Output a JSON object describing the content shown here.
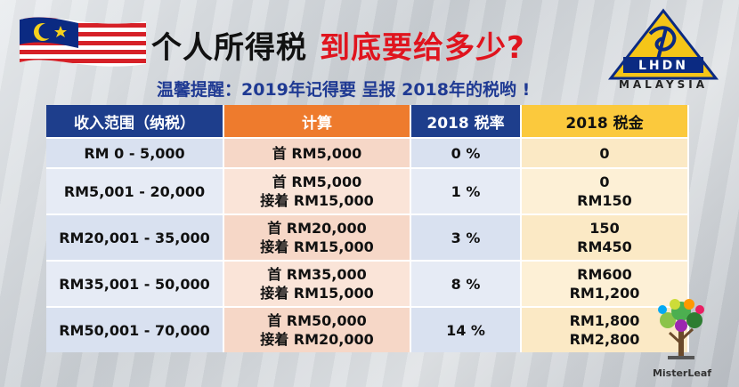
{
  "title": {
    "part1": "个人所得税",
    "part2": "到底要给多少?"
  },
  "subtitle": "温馨提醒：2019年记得要 呈报 2018年的税哟 !",
  "logo": {
    "text": "MALAYSIA",
    "icon": "lhdn-logo-icon"
  },
  "flag_icon": "malaysia-flag-icon",
  "table": {
    "headers": [
      "收入范围（纳税）",
      "计算",
      "2018 税率",
      "2018 税金"
    ],
    "rows": [
      {
        "range": "RM 0 - 5,000",
        "calc": [
          "首 RM5,000"
        ],
        "rate": "0 %",
        "tax": [
          "0"
        ]
      },
      {
        "range": "RM5,001 - 20,000",
        "calc": [
          "首 RM5,000",
          "接着 RM15,000"
        ],
        "rate": "1 %",
        "tax": [
          "0",
          "RM150"
        ]
      },
      {
        "range": "RM20,001 - 35,000",
        "calc": [
          "首 RM20,000",
          "接着 RM15,000"
        ],
        "rate": "3 %",
        "tax": [
          "150",
          "RM450"
        ]
      },
      {
        "range": "RM35,001 - 50,000",
        "calc": [
          "首 RM35,000",
          "接着 RM15,000"
        ],
        "rate": "8 %",
        "tax": [
          "RM600",
          "RM1,200"
        ]
      },
      {
        "range": "RM50,001 - 70,000",
        "calc": [
          "首 RM50,000",
          "接着 RM20,000"
        ],
        "rate": "14 %",
        "tax": [
          "RM1,800",
          "RM2,800"
        ]
      }
    ]
  },
  "watermark": {
    "text": "MisterLeaf",
    "icon": "tree-icon"
  },
  "colors": {
    "navy": "#1e3e8c",
    "orange": "#ee7b2d",
    "gold": "#fbc93d",
    "red": "#e0141e"
  }
}
